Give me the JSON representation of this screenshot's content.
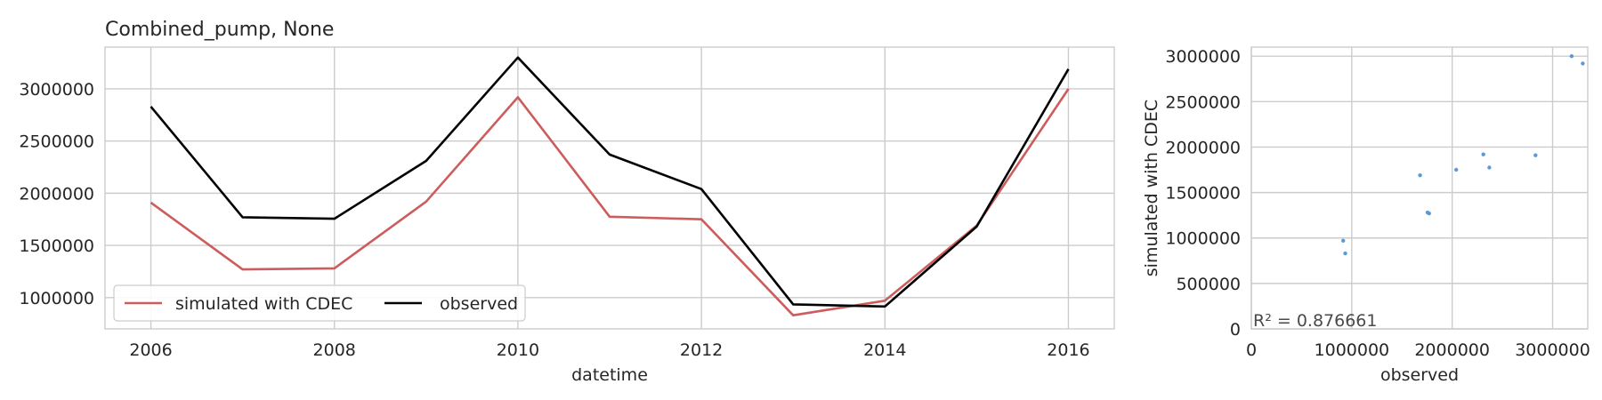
{
  "colors": {
    "simulated": "#cd5c5c",
    "observed": "#000000",
    "scatter": "#5b9bd5",
    "grid": "#cccccc",
    "text": "#262626"
  },
  "chart_data": [
    {
      "type": "line",
      "title": "Combined_pump, None",
      "xlabel": "datetime",
      "ylabel": "",
      "xlim": [
        2005.5,
        2016.5
      ],
      "ylim": [
        700000,
        3400000
      ],
      "x": [
        2006,
        2007,
        2008,
        2009,
        2010,
        2011,
        2012,
        2013,
        2014,
        2015,
        2016
      ],
      "xticks": [
        2006,
        2008,
        2010,
        2012,
        2014,
        2016
      ],
      "xtick_labels": [
        "2006",
        "2008",
        "2010",
        "2012",
        "2014",
        "2016"
      ],
      "yticks": [
        1000000,
        1500000,
        2000000,
        2500000,
        3000000
      ],
      "ytick_labels": [
        "1000000",
        "1500000",
        "2000000",
        "2500000",
        "3000000"
      ],
      "grid": true,
      "legend_position": "lower-left",
      "series": [
        {
          "name": "simulated with CDEC",
          "color": "#cd5c5c",
          "values": [
            1910000,
            1270000,
            1280000,
            1920000,
            2920000,
            1775000,
            1750000,
            830000,
            970000,
            1690000,
            3000000
          ]
        },
        {
          "name": "observed",
          "color": "#000000",
          "values": [
            2830000,
            1770000,
            1755000,
            2310000,
            3300000,
            2370000,
            2040000,
            935000,
            915000,
            1680000,
            3190000
          ]
        }
      ]
    },
    {
      "type": "scatter",
      "title": "",
      "xlabel": "observed",
      "ylabel": "simulated with CDEC",
      "xlim": [
        0,
        3350000
      ],
      "ylim": [
        0,
        3100000
      ],
      "xticks": [
        0,
        1000000,
        2000000,
        3000000
      ],
      "xtick_labels": [
        "0",
        "1000000",
        "2000000",
        "3000000"
      ],
      "yticks": [
        0,
        500000,
        1000000,
        1500000,
        2000000,
        2500000,
        3000000
      ],
      "ytick_labels": [
        "0",
        "500000",
        "1000000",
        "1500000",
        "2000000",
        "2500000",
        "3000000"
      ],
      "grid": true,
      "annotation": "R² = 0.876661",
      "points": [
        {
          "x": 2830000,
          "y": 1910000
        },
        {
          "x": 1770000,
          "y": 1270000
        },
        {
          "x": 1755000,
          "y": 1280000
        },
        {
          "x": 2310000,
          "y": 1920000
        },
        {
          "x": 3300000,
          "y": 2920000
        },
        {
          "x": 2370000,
          "y": 1775000
        },
        {
          "x": 2040000,
          "y": 1750000
        },
        {
          "x": 935000,
          "y": 830000
        },
        {
          "x": 915000,
          "y": 970000
        },
        {
          "x": 1680000,
          "y": 1690000
        },
        {
          "x": 3190000,
          "y": 3000000
        }
      ]
    }
  ]
}
